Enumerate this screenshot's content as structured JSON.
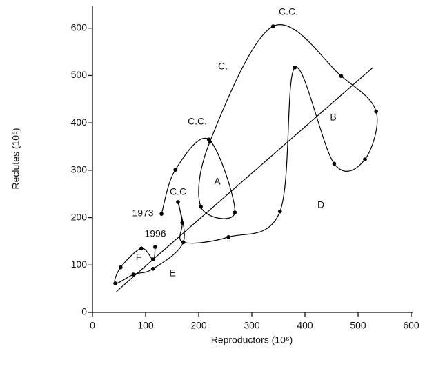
{
  "chart_data": {
    "type": "trajectory",
    "x_label": "Reproductors (10⁶)",
    "y_label": "Reclutes (10⁶)",
    "x": [
      130,
      156,
      219,
      268,
      204,
      221,
      340,
      468,
      534,
      513,
      455,
      381,
      353,
      256,
      171,
      169,
      161,
      171,
      114,
      77,
      43,
      53,
      92,
      114,
      118
    ],
    "y": [
      208,
      301,
      365,
      211,
      223,
      360,
      604,
      499,
      424,
      323,
      314,
      517,
      213,
      159,
      148,
      189,
      233,
      148,
      92,
      80,
      61,
      95,
      135,
      112,
      138
    ],
    "fit": {
      "x": [
        45,
        528
      ],
      "y": [
        44,
        517
      ]
    },
    "annotations": [
      "C.C.",
      "C.",
      "C.C.",
      "A",
      "B",
      "D",
      "C.C",
      "1973",
      "1996",
      "F",
      "E"
    ],
    "color": "#000000",
    "xlim": [
      0,
      600
    ],
    "ylim": [
      0,
      620
    ],
    "xticks": [
      0,
      100,
      200,
      300,
      400,
      500,
      600
    ],
    "yticks": [
      0,
      100,
      200,
      300,
      400,
      500,
      600
    ]
  }
}
